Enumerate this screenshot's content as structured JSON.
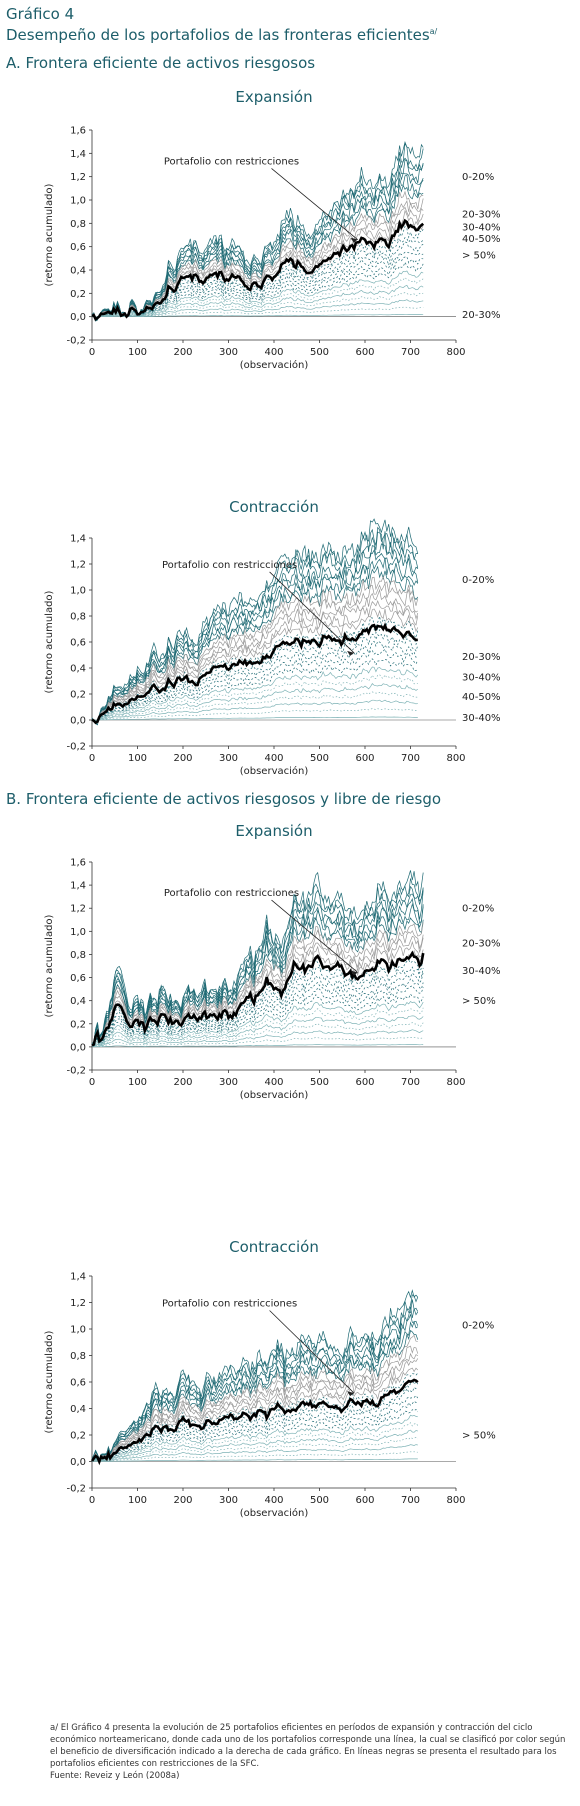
{
  "header": {
    "figure_label": "Gráfico 4",
    "title": "Desempeño de los portafolios de las fronteras eficientes",
    "title_superscript": "a/"
  },
  "sections": {
    "a_title": "A. Frontera eficiente de activos riesgosos",
    "b_title": "B. Frontera eficiente de activos riesgosos y libre de riesgo"
  },
  "colors": {
    "teal": "#1f6a74",
    "gray": "#9a9a9a",
    "light_teal": "#7fb3b6",
    "black": "#000000"
  },
  "chart_data": [
    {
      "type": "line",
      "title": "Expansión",
      "xlabel": "(observación)",
      "ylabel": "(retorno acumulado)",
      "xlim": [
        0,
        800
      ],
      "ylim": [
        -0.2,
        1.6
      ],
      "x_ticks": [
        0,
        100,
        200,
        300,
        400,
        500,
        600,
        700,
        800
      ],
      "y_ticks": [
        "-0,2",
        "0,0",
        "0,2",
        "0,4",
        "0,6",
        "0,8",
        "1,0",
        "1,2",
        "1,4",
        "1,6"
      ],
      "n_observations": 730,
      "n_series": 25,
      "restricted_end": 0.8,
      "top_end": 1.45,
      "restricted_label": "Portafolio con restricciones",
      "group_labels": [
        {
          "text": "0-20%",
          "y": 1.2
        },
        {
          "text": "20-30%",
          "y": 0.88
        },
        {
          "text": "30-40%",
          "y": 0.77
        },
        {
          "text": "40-50%",
          "y": 0.67
        },
        {
          "text": "> 50%",
          "y": 0.53
        },
        {
          "text": "20-30%",
          "y": 0.02
        }
      ]
    },
    {
      "type": "line",
      "title": "Contracción",
      "xlabel": "(observación)",
      "ylabel": "(retorno acumulado)",
      "xlim": [
        0,
        800
      ],
      "ylim": [
        -0.2,
        1.4
      ],
      "x_ticks": [
        0,
        100,
        200,
        300,
        400,
        500,
        600,
        700,
        800
      ],
      "y_ticks": [
        "-0,2",
        "0,0",
        "0,2",
        "0,4",
        "0,6",
        "0,8",
        "1,0",
        "1,2",
        "1,4"
      ],
      "n_observations": 720,
      "n_series": 25,
      "restricted_end": 0.62,
      "top_end": 1.3,
      "restricted_label": "Portafolio con restricciones",
      "group_labels": [
        {
          "text": "0-20%",
          "y": 1.08
        },
        {
          "text": "20-30%",
          "y": 0.49
        },
        {
          "text": "30-40%",
          "y": 0.33
        },
        {
          "text": "40-50%",
          "y": 0.18
        },
        {
          "text": "30-40%",
          "y": 0.02
        }
      ]
    },
    {
      "type": "line",
      "title": "Expansión",
      "xlabel": "(observación)",
      "ylabel": "(retorno acumulado)",
      "xlim": [
        0,
        800
      ],
      "ylim": [
        -0.2,
        1.6
      ],
      "x_ticks": [
        0,
        100,
        200,
        300,
        400,
        500,
        600,
        700,
        800
      ],
      "y_ticks": [
        "-0,2",
        "0,0",
        "0,2",
        "0,4",
        "0,6",
        "0,8",
        "1,0",
        "1,2",
        "1,4",
        "1,6"
      ],
      "n_observations": 730,
      "n_series": 25,
      "restricted_end": 0.78,
      "top_end": 1.45,
      "restricted_label": "Portafolio con restricciones",
      "group_labels": [
        {
          "text": "0-20%",
          "y": 1.2
        },
        {
          "text": "20-30%",
          "y": 0.9
        },
        {
          "text": "30-40%",
          "y": 0.66
        },
        {
          "text": "> 50%",
          "y": 0.4
        }
      ]
    },
    {
      "type": "line",
      "title": "Contracción",
      "xlabel": "(observación)",
      "ylabel": "(retorno acumulado)",
      "xlim": [
        0,
        800
      ],
      "ylim": [
        -0.2,
        1.4
      ],
      "x_ticks": [
        0,
        100,
        200,
        300,
        400,
        500,
        600,
        700,
        800
      ],
      "y_ticks": [
        "-0,2",
        "0,0",
        "0,2",
        "0,4",
        "0,6",
        "0,8",
        "1,0",
        "1,2",
        "1,4"
      ],
      "n_observations": 720,
      "n_series": 25,
      "restricted_end": 0.62,
      "top_end": 1.3,
      "restricted_label": "Portafolio con restricciones",
      "group_labels": [
        {
          "text": "0-20%",
          "y": 1.03
        },
        {
          "text": "> 50%",
          "y": 0.2
        }
      ]
    }
  ],
  "notes": {
    "footnote": "a/ El Gráfico 4 presenta la evolución de 25 portafolios eficientes en períodos de expansión y contracción del ciclo económico norteamericano, donde cada uno de los portafolios corresponde una línea, la cual se clasificó por color según el beneficio de diversificación indicado a la derecha de cada gráfico. En líneas negras se presenta el resultado para los portafolios eficientes con restricciones de la SFC.",
    "source": "Fuente: Reveiz y León (2008a)"
  }
}
